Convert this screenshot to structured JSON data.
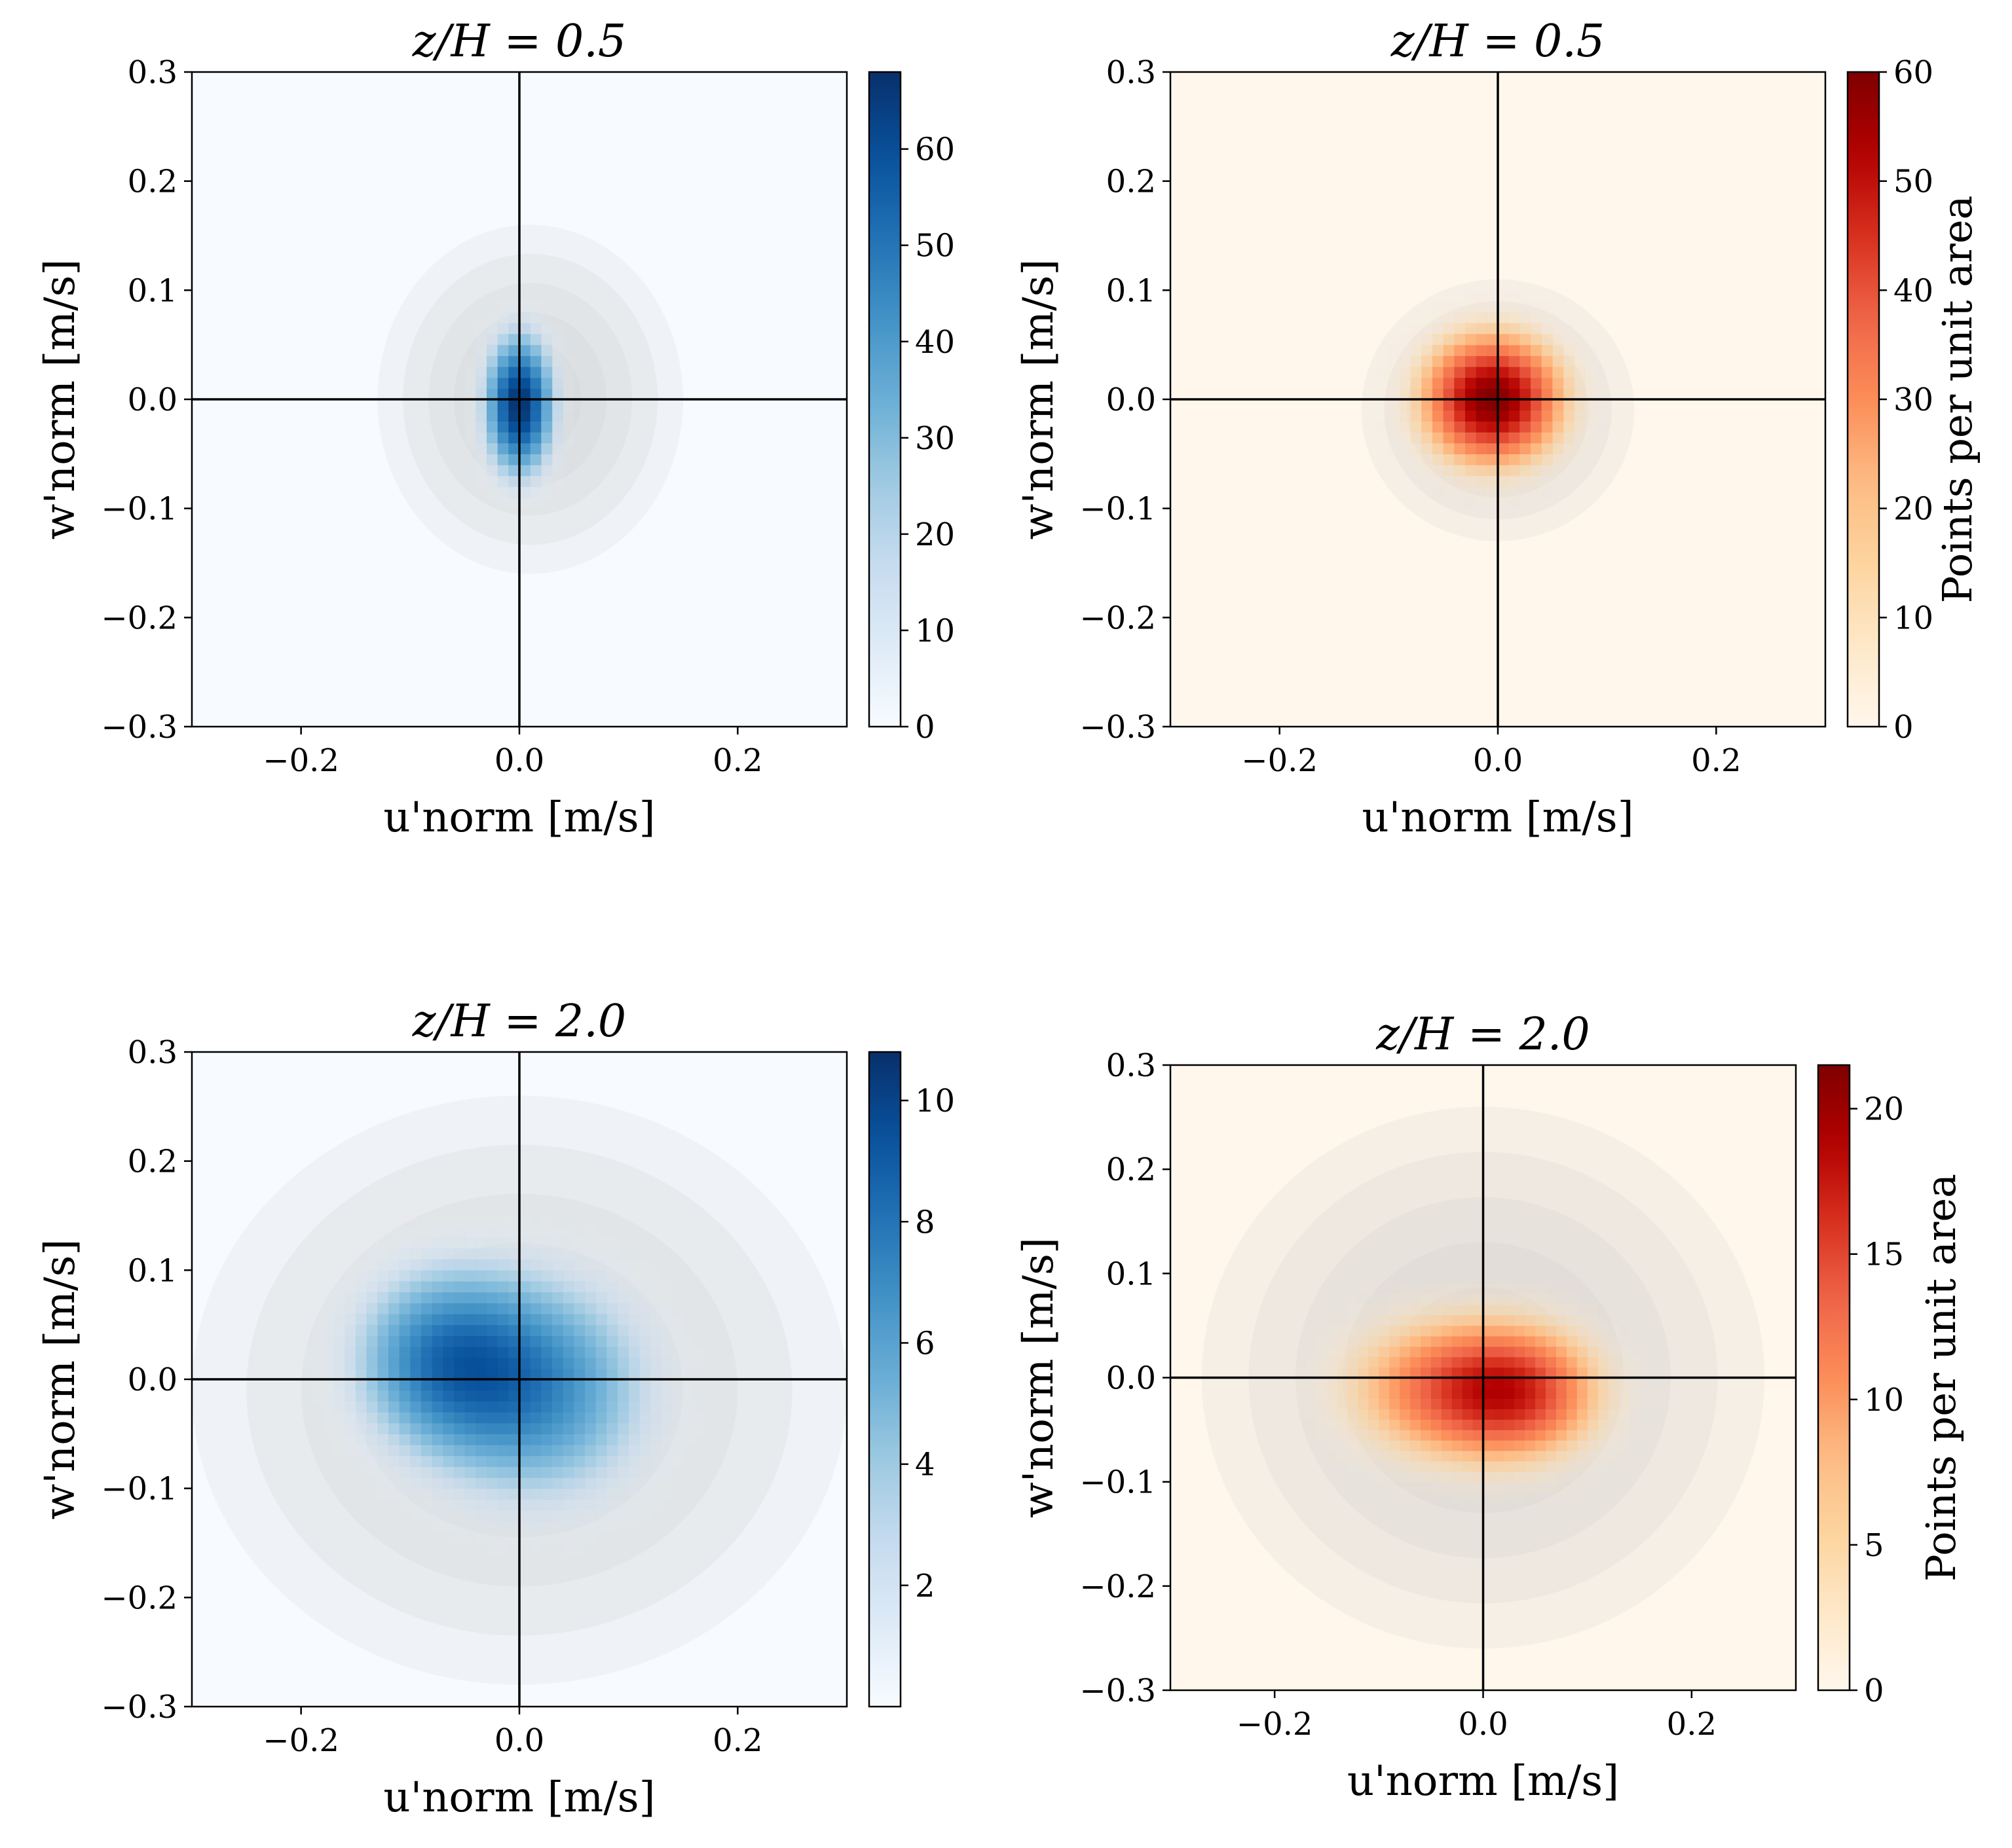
{
  "colors": {
    "blue_map": [
      "#f7fbff",
      "#deebf7",
      "#c6dbef",
      "#9ecae1",
      "#6baed6",
      "#4292c6",
      "#2171b5",
      "#08519c",
      "#08306b"
    ],
    "red_map": [
      "#fff7ec",
      "#fee8c8",
      "#fdd49e",
      "#fdbb84",
      "#fc8d59",
      "#ef6548",
      "#d7301f",
      "#b30000",
      "#7f0000"
    ],
    "gray_cloud": "#c8c8c8",
    "axis": "#000000"
  },
  "chart_data": [
    {
      "id": "top-left",
      "type": "heatmap",
      "title": "z/H = 0.5",
      "xlabel": "u'norm [m/s]",
      "ylabel": "w'norm [m/s]",
      "xlim": [
        -0.3,
        0.3
      ],
      "ylim": [
        -0.3,
        0.3
      ],
      "xticks": [
        -0.2,
        0.0,
        0.2
      ],
      "xtick_labels": [
        "−0.2",
        "0.0",
        "0.2"
      ],
      "yticks": [
        0.3,
        0.2,
        0.1,
        0.0,
        -0.1,
        -0.2,
        -0.3
      ],
      "ytick_labels": [
        "0.3",
        "0.2",
        "0.1",
        "0.0",
        "−0.1",
        "−0.2",
        "−0.3"
      ],
      "colormap": "blue_map",
      "cbar_range": [
        0,
        68
      ],
      "cbar_ticks": [
        0,
        10,
        20,
        30,
        40,
        50,
        60
      ],
      "cbar_tick_labels": [
        "0",
        "10",
        "20",
        "30",
        "40",
        "50",
        "60"
      ],
      "cbar_label": "",
      "cloud": {
        "cx": 0.01,
        "cy": 0.0,
        "rx": 0.14,
        "ry": 0.16
      },
      "density_peaks": [
        {
          "u": 0.0,
          "w": -0.005,
          "su": 0.022,
          "sw": 0.045,
          "amp": 68
        }
      ]
    },
    {
      "id": "top-right",
      "type": "heatmap",
      "title": "z/H = 0.5",
      "xlabel": "u'norm [m/s]",
      "ylabel": "w'norm [m/s]",
      "xlim": [
        -0.3,
        0.3
      ],
      "ylim": [
        -0.3,
        0.3
      ],
      "xticks": [
        -0.2,
        0.0,
        0.2
      ],
      "xtick_labels": [
        "−0.2",
        "0.0",
        "0.2"
      ],
      "yticks": [
        0.3,
        0.2,
        0.1,
        0.0,
        -0.1,
        -0.2,
        -0.3
      ],
      "ytick_labels": [
        "0.3",
        "0.2",
        "0.1",
        "0.0",
        "−0.1",
        "−0.2",
        "−0.3"
      ],
      "colormap": "red_map",
      "cbar_range": [
        0,
        60
      ],
      "cbar_ticks": [
        0,
        10,
        20,
        30,
        40,
        50,
        60
      ],
      "cbar_tick_labels": [
        "0",
        "10",
        "20",
        "30",
        "40",
        "50",
        "60"
      ],
      "cbar_label": "Points per unit area",
      "cloud": {
        "cx": 0.0,
        "cy": -0.01,
        "rx": 0.125,
        "ry": 0.12
      },
      "density_peaks": [
        {
          "u": -0.005,
          "w": 0.0,
          "su": 0.045,
          "sw": 0.042,
          "amp": 60
        }
      ]
    },
    {
      "id": "bottom-left",
      "type": "heatmap",
      "title": "z/H = 2.0",
      "xlabel": "u'norm [m/s]",
      "ylabel": "w'norm [m/s]",
      "xlim": [
        -0.3,
        0.3
      ],
      "ylim": [
        -0.3,
        0.3
      ],
      "xticks": [
        -0.2,
        0.0,
        0.2
      ],
      "xtick_labels": [
        "−0.2",
        "0.0",
        "0.2"
      ],
      "yticks": [
        0.3,
        0.2,
        0.1,
        0.0,
        -0.1,
        -0.2,
        -0.3
      ],
      "ytick_labels": [
        "0.3",
        "0.2",
        "0.1",
        "0.0",
        "−0.1",
        "−0.2",
        "−0.3"
      ],
      "colormap": "blue_map",
      "cbar_range": [
        0,
        10.8
      ],
      "cbar_ticks": [
        2,
        4,
        6,
        8,
        10
      ],
      "cbar_tick_labels": [
        "2",
        "4",
        "6",
        "8",
        "10"
      ],
      "cbar_label": "",
      "cloud": {
        "cx": 0.0,
        "cy": -0.01,
        "rx": 0.3,
        "ry": 0.27
      },
      "density_peaks": [
        {
          "u": -0.075,
          "w": 0.02,
          "su": 0.06,
          "sw": 0.06,
          "amp": 6.0
        },
        {
          "u": 0.02,
          "w": -0.01,
          "su": 0.075,
          "sw": 0.075,
          "amp": 6.5
        }
      ]
    },
    {
      "id": "bottom-right",
      "type": "heatmap",
      "title": "z/H = 2.0",
      "xlabel": "u'norm [m/s]",
      "ylabel": "w'norm [m/s]",
      "xlim": [
        -0.3,
        0.3
      ],
      "ylim": [
        -0.3,
        0.3
      ],
      "xticks": [
        -0.2,
        0.0,
        0.2
      ],
      "xtick_labels": [
        "−0.2",
        "0.0",
        "0.2"
      ],
      "yticks": [
        0.3,
        0.2,
        0.1,
        0.0,
        -0.1,
        -0.2,
        -0.3
      ],
      "ytick_labels": [
        "0.3",
        "0.2",
        "0.1",
        "0.0",
        "−0.1",
        "−0.2",
        "−0.3"
      ],
      "colormap": "red_map",
      "cbar_range": [
        0,
        21.5
      ],
      "cbar_ticks": [
        0,
        5,
        10,
        15,
        20
      ],
      "cbar_tick_labels": [
        "0",
        "5",
        "10",
        "15",
        "20"
      ],
      "cbar_label": "Points per unit area",
      "cloud": {
        "cx": 0.0,
        "cy": 0.0,
        "rx": 0.27,
        "ry": 0.26
      },
      "density_peaks": [
        {
          "u": -0.03,
          "w": -0.01,
          "su": 0.075,
          "sw": 0.05,
          "amp": 12
        },
        {
          "u": 0.04,
          "w": -0.015,
          "su": 0.055,
          "sw": 0.045,
          "amp": 10
        }
      ]
    }
  ]
}
